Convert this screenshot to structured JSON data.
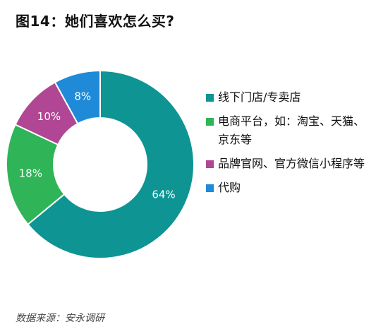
{
  "title": "图14：她们喜欢怎么买?",
  "source": "数据来源：安永调研",
  "chart_data": {
    "type": "pie",
    "donut": true,
    "categories": [
      "线下门店/专卖店",
      "电商平台，如：淘宝、天猫、京东等",
      "品牌官网、官方微信小程序等",
      "代购"
    ],
    "values": [
      64,
      18,
      10,
      8
    ],
    "data_labels": [
      "64%",
      "18%",
      "10%",
      "8%"
    ],
    "colors": [
      "#0f9494",
      "#2fb457",
      "#b04694",
      "#1f8ad8"
    ],
    "legend_position": "right"
  }
}
